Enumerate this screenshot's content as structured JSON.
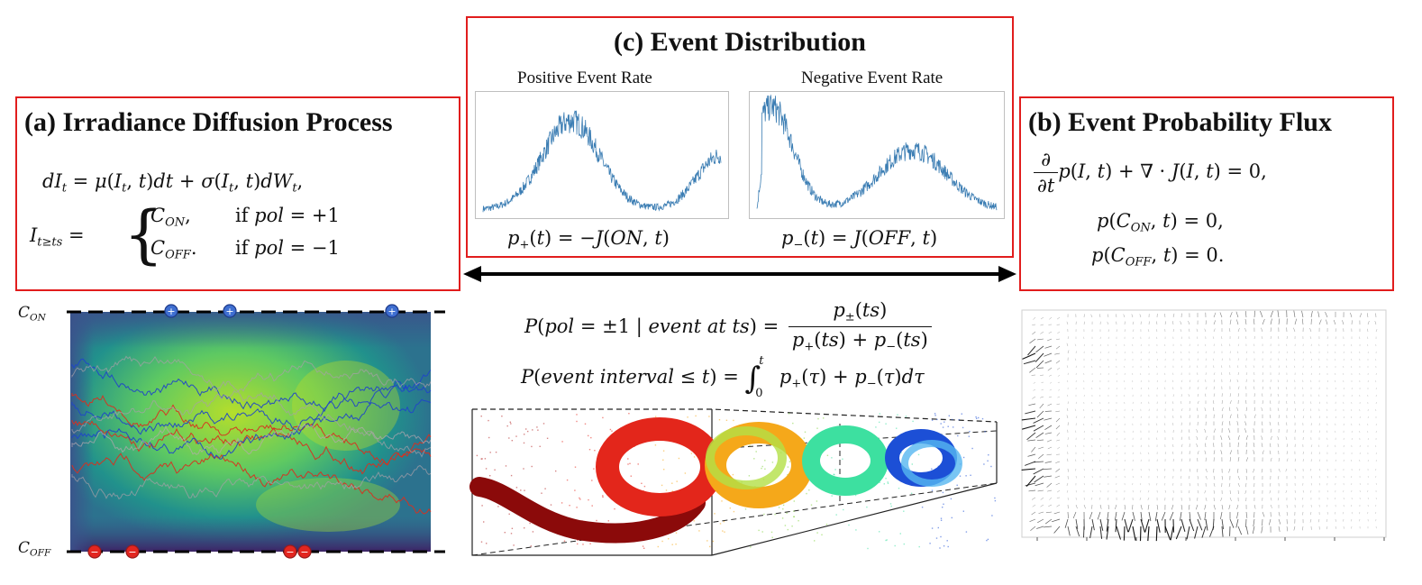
{
  "panel_a": {
    "title": "(a) Irradiance Diffusion Process",
    "c_on_label": "C",
    "c_on_sub": "ON",
    "c_off_label": "C",
    "c_off_sub": "OFF"
  },
  "panel_b": {
    "title": "(b) Event Probability Flux"
  },
  "panel_c": {
    "title": "(c) Event Distribution",
    "pos_rate_label": "Positive Event Rate",
    "neg_rate_label": "Negative Event Rate"
  },
  "colors": {
    "frame_red": "#e11d1d",
    "rate_blue": "#3b7db3",
    "on_marker": "#3f6fd1",
    "off_marker": "#e3251f"
  }
}
